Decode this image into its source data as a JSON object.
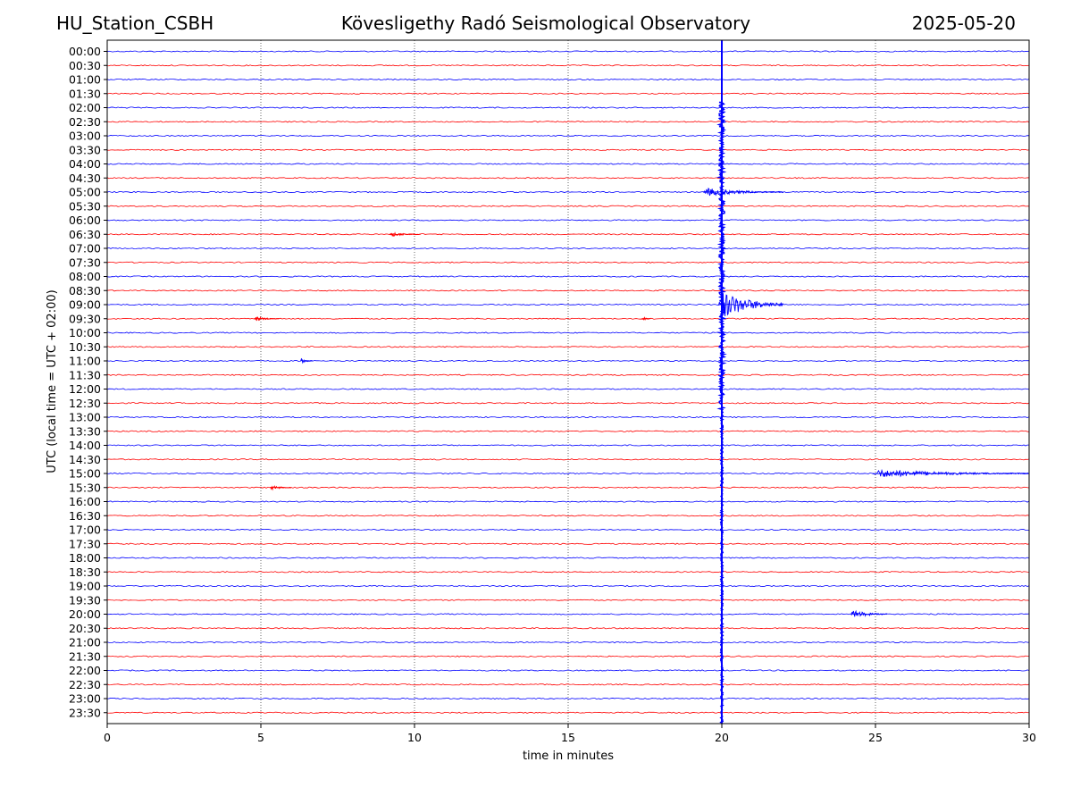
{
  "header": {
    "station": "HU_Station_CSBH",
    "title": "Kövesligethy Radó Seismological Observatory",
    "date": "2025-05-20"
  },
  "chart_data": {
    "type": "line",
    "xlabel": "time in minutes",
    "ylabel": "UTC (local time = UTC + 02:00)",
    "xlim": [
      0,
      30
    ],
    "xticks": [
      0,
      5,
      10,
      15,
      20,
      25,
      30
    ],
    "grid": "vertical dotted lines at 5-minute ticks",
    "trace_colors": [
      "#0000ff",
      "#ff0000"
    ],
    "rows": [
      "00:00",
      "00:30",
      "01:00",
      "01:30",
      "02:00",
      "02:30",
      "03:00",
      "03:30",
      "04:00",
      "04:30",
      "05:00",
      "05:30",
      "06:00",
      "06:30",
      "07:00",
      "07:30",
      "08:00",
      "08:30",
      "09:00",
      "09:30",
      "10:00",
      "10:30",
      "11:00",
      "11:30",
      "12:00",
      "12:30",
      "13:00",
      "13:30",
      "14:00",
      "14:30",
      "15:00",
      "15:30",
      "16:00",
      "16:30",
      "17:00",
      "17:30",
      "18:00",
      "18:30",
      "19:00",
      "19:30",
      "20:00",
      "20:30",
      "21:00",
      "21:30",
      "22:00",
      "22:30",
      "23:00",
      "23:30"
    ],
    "events": [
      {
        "row": "02:00",
        "start_min": 19.95,
        "end_min": 20.0,
        "type": "start of major signal",
        "color": "#0000ff"
      },
      {
        "row": "05:00",
        "start_min": 19.4,
        "end_min": 22.0,
        "type": "regional event",
        "color": "#0000ff"
      },
      {
        "row": "09:00",
        "start_min": 19.9,
        "end_min": 22.0,
        "type": "large amplitude coda",
        "color": "#0000ff"
      },
      {
        "row": "15:00",
        "start_min": 24.9,
        "end_min": 30.0,
        "type": "local event",
        "color": "#0000ff"
      },
      {
        "row": "20:00",
        "start_min": 24.2,
        "end_min": 25.4,
        "type": "small event",
        "color": "#0000ff"
      },
      {
        "row": "06:30",
        "start_min": 9.2,
        "end_min": 10.2,
        "type": "noise burst",
        "color": "#ff0000"
      },
      {
        "row": "09:30",
        "start_min": 4.8,
        "end_min": 5.6,
        "type": "noise burst",
        "color": "#ff0000"
      },
      {
        "row": "09:30",
        "start_min": 17.4,
        "end_min": 17.7,
        "type": "noise burst",
        "color": "#ff0000"
      },
      {
        "row": "11:00",
        "start_min": 6.3,
        "end_min": 6.7,
        "type": "noise burst",
        "color": "#0000ff"
      },
      {
        "row": "15:30",
        "start_min": 5.3,
        "end_min": 6.0,
        "type": "noise burst",
        "color": "#ff0000"
      }
    ]
  }
}
